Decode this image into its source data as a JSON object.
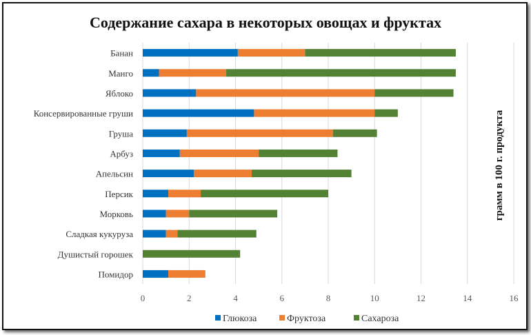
{
  "chart_data": {
    "type": "bar",
    "orientation": "horizontal",
    "stacked": true,
    "title": "Содержание сахара в некоторых овощах и фруктах",
    "xlabel": "",
    "ylabel": "грамм в 100 г. продукта",
    "xlim": [
      0,
      16
    ],
    "xticks": [
      "0",
      "2",
      "4",
      "6",
      "8",
      "10",
      "12",
      "14",
      "16"
    ],
    "grid": true,
    "legend_position": "bottom",
    "categories": [
      "Банан",
      "Манго",
      "Яблоко",
      "Консервированные груши",
      "Груша",
      "Арбуз",
      "Апельсин",
      "Персик",
      "Морковь",
      "Сладкая кукуруза",
      "Душистый горошек",
      "Помидор"
    ],
    "series": [
      {
        "name": "Глюкоза",
        "color": "#0070C0",
        "values": [
          4.1,
          0.7,
          2.3,
          4.8,
          1.9,
          1.6,
          2.2,
          1.1,
          1.0,
          1.0,
          0,
          1.1
        ]
      },
      {
        "name": "Фруктоза",
        "color": "#ED7D31",
        "values": [
          2.9,
          2.9,
          7.7,
          5.2,
          6.3,
          3.4,
          2.5,
          1.4,
          1.0,
          0.5,
          0,
          1.6
        ]
      },
      {
        "name": "Сахароза",
        "color": "#548235",
        "values": [
          6.5,
          9.9,
          3.4,
          1.0,
          1.9,
          3.4,
          4.3,
          5.5,
          3.8,
          3.4,
          4.2,
          0
        ]
      }
    ]
  }
}
